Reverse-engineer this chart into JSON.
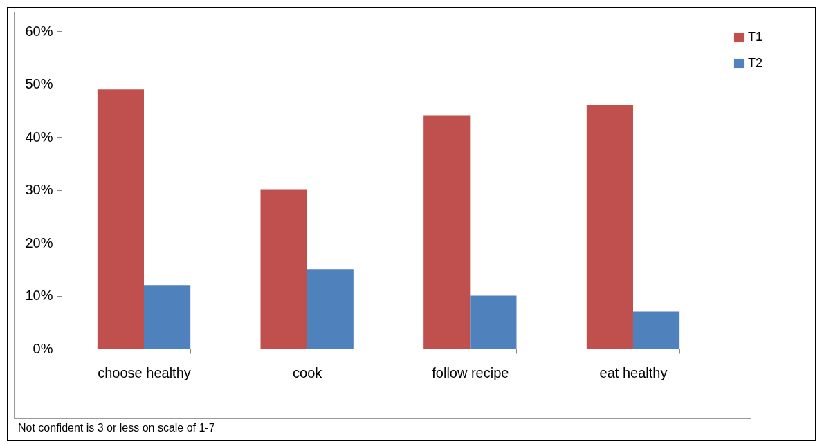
{
  "chart_data": {
    "type": "bar",
    "categories": [
      "choose healthy",
      "cook",
      "follow recipe",
      "eat healthy"
    ],
    "series": [
      {
        "name": "T1",
        "color": "#c0504d",
        "values": [
          49,
          30,
          44,
          46
        ]
      },
      {
        "name": "T2",
        "color": "#4f81bd",
        "values": [
          12,
          15,
          10,
          7
        ]
      }
    ],
    "ylim": [
      0,
      60
    ],
    "yticks": [
      {
        "value": 0,
        "label": "0%"
      },
      {
        "value": 10,
        "label": "10%"
      },
      {
        "value": 20,
        "label": "20%"
      },
      {
        "value": 30,
        "label": "30%"
      },
      {
        "value": 40,
        "label": "40%"
      },
      {
        "value": 50,
        "label": "50%"
      },
      {
        "value": 60,
        "label": "60%"
      }
    ],
    "grid": false,
    "legend": "right",
    "annotations": [
      "Not confident is 3 or less on scale of 1-7"
    ]
  }
}
